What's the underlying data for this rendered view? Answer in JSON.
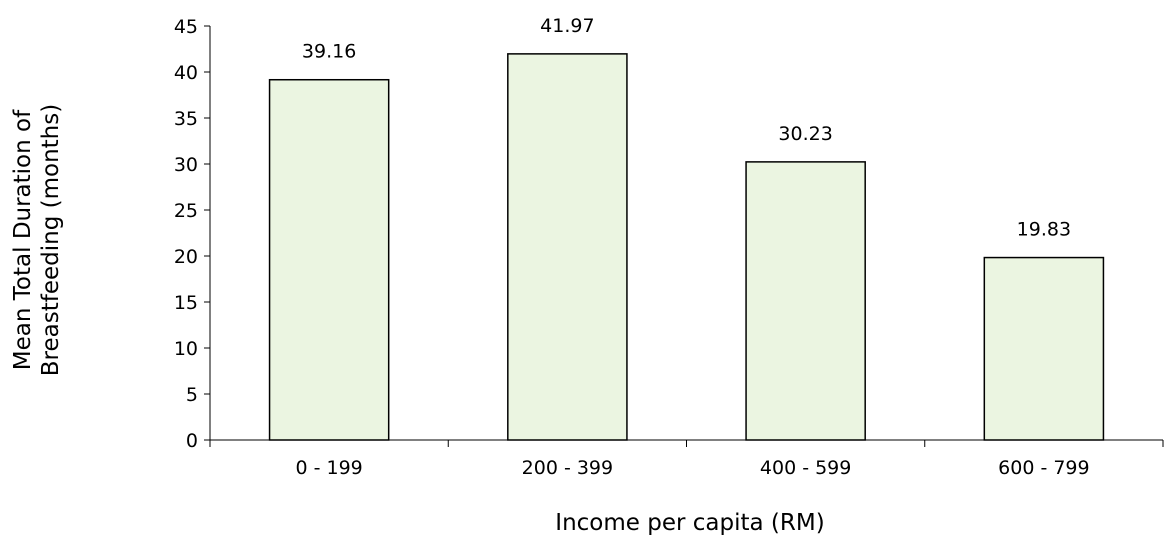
{
  "chart_data": {
    "type": "bar",
    "categories": [
      "0 - 199",
      "200 - 399",
      "400 - 599",
      "600 - 799"
    ],
    "values": [
      39.16,
      41.97,
      30.23,
      19.83
    ],
    "data_labels": [
      "39.16",
      "41.97",
      "30.23",
      "19.83"
    ],
    "xlabel": "Income per capita (RM)",
    "ylabel_lines": [
      "Mean Total Duration of",
      "Breastfeeding (months)"
    ],
    "ylim": [
      0,
      45
    ],
    "yticks": [
      0,
      5,
      10,
      15,
      20,
      25,
      30,
      35,
      40,
      45
    ],
    "grid": false,
    "legend": "none",
    "colors": {
      "bar_fill": "#ebf5e1",
      "bar_stroke": "#000000",
      "axis": "#000000"
    }
  }
}
